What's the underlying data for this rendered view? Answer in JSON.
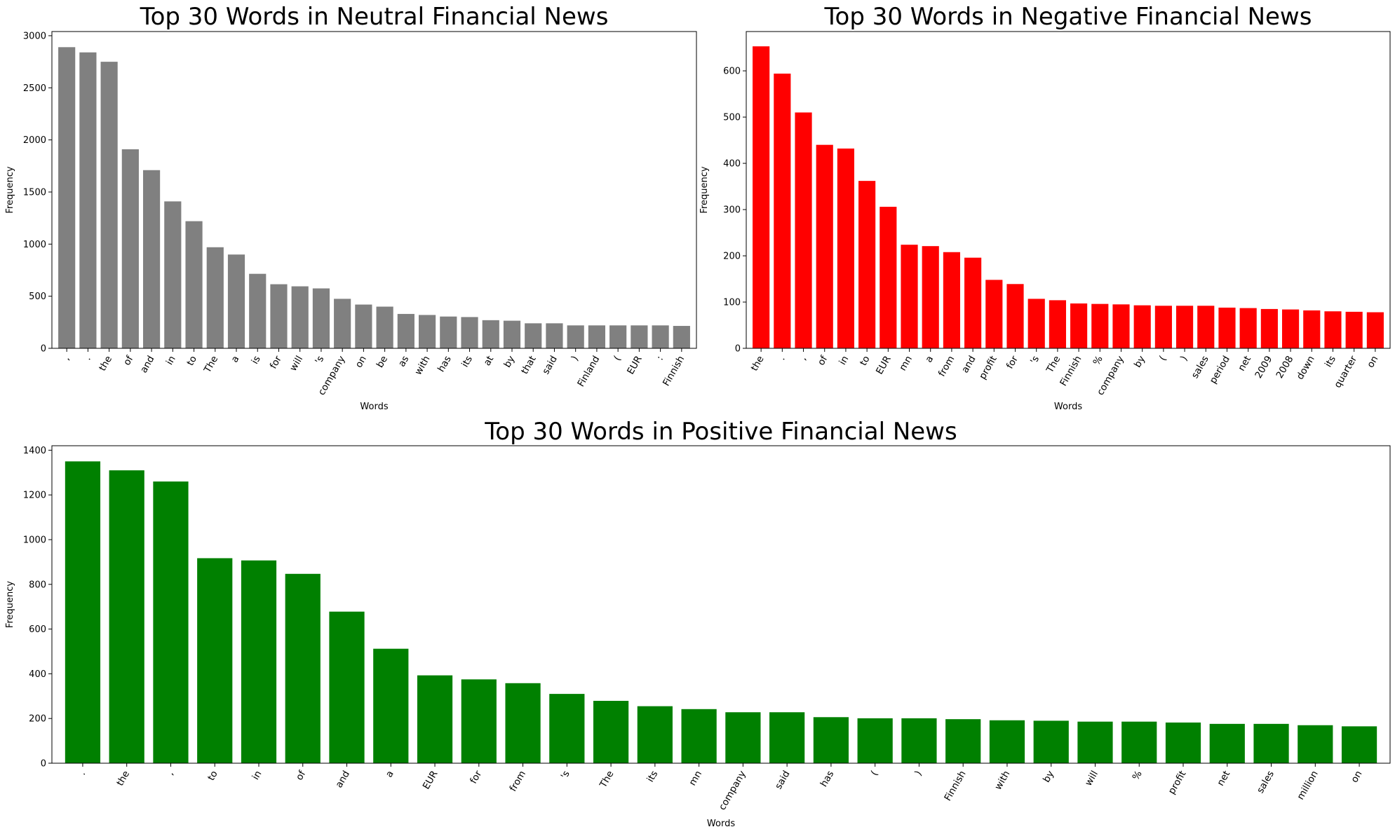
{
  "chart_data": [
    {
      "type": "bar",
      "title": "Top 30 Words in Neutral Financial News",
      "xlabel": "Words",
      "ylabel": "Frequency",
      "ylim": [
        0,
        3040
      ],
      "yticks": [
        0,
        500,
        1000,
        1500,
        2000,
        2500,
        3000
      ],
      "color": "#808080",
      "grid": false,
      "categories": [
        ",",
        ".",
        "the",
        "of",
        "and",
        "in",
        "to",
        "The",
        "a",
        "is",
        "for",
        "will",
        "'s",
        "company",
        "on",
        "be",
        "as",
        "with",
        "has",
        "its",
        "at",
        "by",
        "that",
        "said",
        ")",
        "Finland",
        "(",
        "EUR",
        ":",
        "Finnish"
      ],
      "values": [
        2890,
        2840,
        2750,
        1910,
        1710,
        1410,
        1220,
        970,
        900,
        715,
        615,
        595,
        575,
        475,
        420,
        400,
        330,
        320,
        305,
        300,
        270,
        265,
        240,
        240,
        220,
        220,
        220,
        220,
        220,
        215
      ]
    },
    {
      "type": "bar",
      "title": "Top 30 Words in Negative Financial News",
      "xlabel": "Words",
      "ylabel": "Frequency",
      "ylim": [
        0,
        685
      ],
      "yticks": [
        0,
        100,
        200,
        300,
        400,
        500,
        600
      ],
      "color": "#ff0000",
      "grid": false,
      "categories": [
        "the",
        ".",
        ",",
        "of",
        "in",
        "to",
        "EUR",
        "mn",
        "a",
        "from",
        "and",
        "profit",
        "for",
        "'s",
        "The",
        "Finnish",
        "%",
        "company",
        "by",
        "(",
        ")",
        "sales",
        "period",
        "net",
        "2009",
        "2008",
        "down",
        "its",
        "quarter",
        "on"
      ],
      "values": [
        653,
        594,
        510,
        440,
        432,
        362,
        306,
        224,
        221,
        208,
        196,
        148,
        139,
        107,
        104,
        97,
        96,
        95,
        93,
        92,
        92,
        92,
        88,
        87,
        85,
        84,
        82,
        80,
        79,
        78
      ]
    },
    {
      "type": "bar",
      "title": "Top 30 Words in Positive Financial News",
      "xlabel": "Words",
      "ylabel": "Frequency",
      "ylim": [
        0,
        1420
      ],
      "yticks": [
        0,
        200,
        400,
        600,
        800,
        1000,
        1200,
        1400
      ],
      "color": "#008000",
      "grid": false,
      "categories": [
        ".",
        "the",
        ",",
        "to",
        "in",
        "of",
        "and",
        "a",
        "EUR",
        "for",
        "from",
        "'s",
        "The",
        "its",
        "mn",
        "company",
        "said",
        "has",
        "(",
        ")",
        "Finnish",
        "with",
        "by",
        "will",
        "%",
        "profit",
        "net",
        "sales",
        "million",
        "on"
      ],
      "values": [
        1350,
        1310,
        1260,
        917,
        907,
        847,
        678,
        512,
        393,
        375,
        358,
        310,
        279,
        255,
        242,
        228,
        228,
        206,
        201,
        201,
        197,
        192,
        190,
        186,
        186,
        182,
        176,
        176,
        170,
        165
      ]
    }
  ]
}
